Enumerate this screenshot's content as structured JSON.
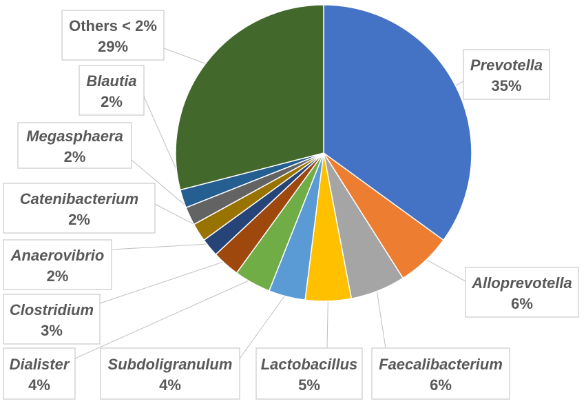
{
  "chart_data": {
    "type": "pie",
    "title": "",
    "start_angle_deg": 0,
    "direction": "clockwise",
    "slices": [
      {
        "label": "Prevotella",
        "value": 35,
        "value_label": "35%",
        "color": "#4472C4",
        "italic": true
      },
      {
        "label": "Alloprevotella",
        "value": 6,
        "value_label": "6%",
        "color": "#ED7D31",
        "italic": true
      },
      {
        "label": "Faecalibacterium",
        "value": 6,
        "value_label": "6%",
        "color": "#A5A5A5",
        "italic": true
      },
      {
        "label": "Lactobacillus",
        "value": 5,
        "value_label": "5%",
        "color": "#FFC000",
        "italic": true
      },
      {
        "label": "Subdoligranulum",
        "value": 4,
        "value_label": "4%",
        "color": "#5B9BD5",
        "italic": true
      },
      {
        "label": "Dialister",
        "value": 4,
        "value_label": "4%",
        "color": "#70AD47",
        "italic": true
      },
      {
        "label": "Clostridium",
        "value": 3,
        "value_label": "3%",
        "color": "#9E480E",
        "italic": true
      },
      {
        "label": "Anaerovibrio",
        "value": 2,
        "value_label": "2%",
        "color": "#264478",
        "italic": true
      },
      {
        "label": "Catenibacterium",
        "value": 2,
        "value_label": "2%",
        "color": "#997300",
        "italic": true
      },
      {
        "label": "Megasphaera",
        "value": 2,
        "value_label": "2%",
        "color": "#636363",
        "italic": true
      },
      {
        "label": "Blautia",
        "value": 2,
        "value_label": "2%",
        "color": "#255E91",
        "italic": true
      },
      {
        "label": "Others < 2%",
        "value": 29,
        "value_label": "29%",
        "color": "#43682B",
        "italic": false
      }
    ]
  }
}
